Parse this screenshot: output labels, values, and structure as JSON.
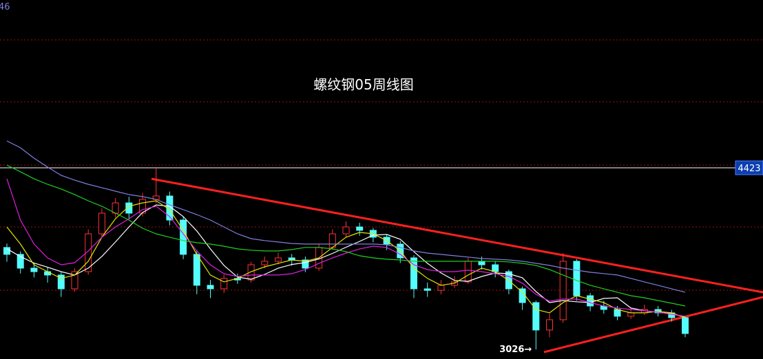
{
  "chart_data": {
    "type": "candlestick",
    "title": "螺纹钢05周线图",
    "corner_label": "46",
    "ylim": [
      2952,
      5714
    ],
    "grid_levels": [
      5407,
      4931,
      4444,
      3968,
      3481
    ],
    "up_color": "#ff3232",
    "down_color": "#54fcfc",
    "open": [
      3810,
      3757,
      3651,
      3624,
      3598,
      3492,
      3624,
      3915,
      4074,
      4153,
      4074,
      4180,
      4206,
      4021,
      3757,
      3519,
      3492,
      3572,
      3560,
      3677,
      3704,
      3730,
      3714,
      3651,
      3810,
      3915,
      3968,
      3942,
      3889,
      3836,
      3730,
      3492,
      3480,
      3519,
      3545,
      3704,
      3677,
      3624,
      3492,
      3386,
      3175,
      3254,
      3704,
      3439,
      3360,
      3333,
      3281,
      3307,
      3333,
      3307,
      3270
    ],
    "close": [
      3757,
      3651,
      3624,
      3598,
      3492,
      3624,
      3915,
      4074,
      4153,
      4074,
      4180,
      4206,
      4021,
      3757,
      3519,
      3492,
      3572,
      3560,
      3677,
      3704,
      3730,
      3714,
      3651,
      3810,
      3915,
      3968,
      3942,
      3889,
      3836,
      3730,
      3492,
      3480,
      3519,
      3545,
      3704,
      3677,
      3624,
      3492,
      3386,
      3175,
      3254,
      3704,
      3439,
      3360,
      3333,
      3281,
      3307,
      3333,
      3307,
      3270,
      3148
    ],
    "high": [
      3840,
      3780,
      3690,
      3660,
      3620,
      3650,
      3950,
      4110,
      4190,
      4200,
      4230,
      4423,
      4240,
      4050,
      3790,
      3560,
      3600,
      3610,
      3700,
      3740,
      3770,
      3760,
      3740,
      3840,
      3950,
      4010,
      4000,
      3960,
      3910,
      3860,
      3750,
      3540,
      3560,
      3590,
      3730,
      3740,
      3700,
      3640,
      3510,
      3400,
      3300,
      3767,
      3720,
      3460,
      3400,
      3360,
      3340,
      3370,
      3360,
      3330,
      3280
    ],
    "low": [
      3700,
      3610,
      3580,
      3540,
      3430,
      3470,
      3600,
      3890,
      4040,
      4030,
      4050,
      4150,
      3980,
      3720,
      3450,
      3420,
      3460,
      3530,
      3540,
      3650,
      3680,
      3670,
      3620,
      3630,
      3790,
      3890,
      3900,
      3850,
      3790,
      3690,
      3420,
      3430,
      3450,
      3500,
      3530,
      3640,
      3580,
      3450,
      3330,
      3026,
      3120,
      3230,
      3400,
      3320,
      3300,
      3250,
      3260,
      3290,
      3280,
      3240,
      3120
    ],
    "ma_lines": [
      {
        "color": "#ffffff",
        "values": [
          3800,
          3740,
          3690,
          3658,
          3624,
          3598,
          3651,
          3741,
          3852,
          3968,
          4079,
          4137,
          4127,
          4048,
          3937,
          3799,
          3672,
          3582,
          3566,
          3603,
          3651,
          3679,
          3695,
          3722,
          3764,
          3812,
          3857,
          3905,
          3910,
          3873,
          3778,
          3688,
          3614,
          3556,
          3550,
          3587,
          3614,
          3608,
          3577,
          3471,
          3386,
          3402,
          3392,
          3386,
          3418,
          3423,
          3344,
          3323,
          3312,
          3300,
          3273
        ]
      },
      {
        "color": "#e6e600",
        "values": [
          3968,
          3836,
          3677,
          3624,
          3572,
          3598,
          3704,
          3889,
          4031,
          4127,
          4153,
          4169,
          4101,
          3942,
          3757,
          3598,
          3545,
          3572,
          3624,
          3661,
          3688,
          3714,
          3704,
          3730,
          3810,
          3889,
          3926,
          3915,
          3863,
          3783,
          3651,
          3572,
          3519,
          3535,
          3598,
          3651,
          3624,
          3556,
          3466,
          3333,
          3307,
          3386,
          3439,
          3413,
          3386,
          3333,
          3307,
          3307,
          3318,
          3307,
          3270
        ]
      },
      {
        "color": "#e020e0",
        "values": [
          4339,
          4021,
          3836,
          3730,
          3677,
          3693,
          3783,
          3889,
          3968,
          4031,
          4101,
          4127,
          4048,
          3915,
          3783,
          3677,
          3608,
          3587,
          3598,
          3598,
          3598,
          3608,
          3640,
          3688,
          3730,
          3767,
          3799,
          3820,
          3810,
          3757,
          3677,
          3640,
          3624,
          3624,
          3635,
          3624,
          3608,
          3587,
          3535,
          3450,
          3397,
          3413,
          3413,
          3386,
          3360,
          3344,
          3333,
          3323,
          3312,
          3296,
          3281
        ]
      },
      {
        "color": "#20d020",
        "values": [
          4444,
          4392,
          4339,
          4296,
          4260,
          4217,
          4169,
          4127,
          4074,
          4021,
          3958,
          3915,
          3889,
          3863,
          3847,
          3836,
          3820,
          3799,
          3789,
          3783,
          3783,
          3794,
          3810,
          3810,
          3799,
          3778,
          3746,
          3730,
          3720,
          3714,
          3704,
          3704,
          3704,
          3704,
          3704,
          3704,
          3704,
          3699,
          3688,
          3672,
          3640,
          3598,
          3556,
          3519,
          3492,
          3466,
          3439,
          3423,
          3402,
          3381,
          3360
        ]
      },
      {
        "color": "#8080e0",
        "values": [
          4630,
          4577,
          4497,
          4429,
          4365,
          4328,
          4296,
          4270,
          4243,
          4217,
          4201,
          4180,
          4138,
          4101,
          4063,
          4021,
          3968,
          3915,
          3878,
          3863,
          3852,
          3841,
          3836,
          3836,
          3836,
          3836,
          3836,
          3836,
          3831,
          3810,
          3783,
          3767,
          3757,
          3746,
          3736,
          3725,
          3720,
          3714,
          3704,
          3688,
          3672,
          3651,
          3635,
          3619,
          3609,
          3598,
          3572,
          3545,
          3519,
          3492,
          3466
        ]
      }
    ],
    "high_marker": 4423,
    "low_marker": {
      "value": 3026,
      "label": "3026→"
    }
  }
}
